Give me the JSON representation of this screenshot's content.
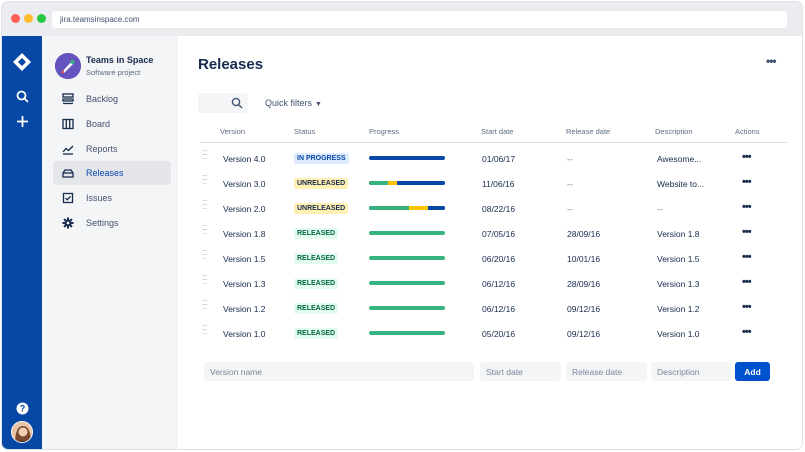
{
  "browser": {
    "url": "jira.teamsinspace.com"
  },
  "global_nav": {
    "icons": [
      "jira-logo-icon",
      "search-icon",
      "plus-icon",
      "help-icon",
      "user-avatar"
    ]
  },
  "project": {
    "name": "Teams in Space",
    "type": "Software project"
  },
  "sidebar": {
    "items": [
      {
        "label": "Backlog",
        "icon": "backlog-icon"
      },
      {
        "label": "Board",
        "icon": "board-icon"
      },
      {
        "label": "Reports",
        "icon": "reports-icon"
      },
      {
        "label": "Releases",
        "icon": "releases-icon",
        "active": true
      },
      {
        "label": "Issues",
        "icon": "issues-icon"
      },
      {
        "label": "Settings",
        "icon": "gear-icon"
      }
    ]
  },
  "page": {
    "title": "Releases",
    "more": "•••"
  },
  "filters": {
    "quick_filters": "Quick filters"
  },
  "table": {
    "headers": {
      "version": "Version",
      "status": "Status",
      "progress": "Progress",
      "start_date": "Start date",
      "release_date": "Release date",
      "description": "Description",
      "actions": "Actions"
    },
    "rows": [
      {
        "version": "Version 4.0",
        "status": "IN PROGRESS",
        "status_kind": "progress",
        "progress": {
          "done": 0,
          "in_progress": 0,
          "todo": 1.0
        },
        "start_date": "01/06/17",
        "release_date": "--",
        "description": "Awesome...",
        "actions": "•••"
      },
      {
        "version": "Version 3.0",
        "status": "UNRELEASED",
        "status_kind": "unreleased",
        "progress": {
          "done": 0.25,
          "in_progress": 0.12,
          "todo": 0.63
        },
        "start_date": "11/06/16",
        "release_date": "--",
        "description": "Website to...",
        "actions": "•••"
      },
      {
        "version": "Version 2.0",
        "status": "UNRELEASED",
        "status_kind": "unreleased",
        "progress": {
          "done": 0.53,
          "in_progress": 0.25,
          "todo": 0.22
        },
        "start_date": "08/22/16",
        "release_date": "--",
        "description": "--",
        "actions": "•••"
      },
      {
        "version": "Version 1.8",
        "status": "RELEASED",
        "status_kind": "released",
        "progress": {
          "done": 1.0,
          "in_progress": 0,
          "todo": 0
        },
        "start_date": "07/05/16",
        "release_date": "28/09/16",
        "description": "Version 1.8",
        "actions": "•••"
      },
      {
        "version": "Version 1.5",
        "status": "RELEASED",
        "status_kind": "released",
        "progress": {
          "done": 1.0,
          "in_progress": 0,
          "todo": 0
        },
        "start_date": "06/20/16",
        "release_date": "10/01/16",
        "description": "Version 1.5",
        "actions": "•••"
      },
      {
        "version": "Version 1.3",
        "status": "RELEASED",
        "status_kind": "released",
        "progress": {
          "done": 1.0,
          "in_progress": 0,
          "todo": 0
        },
        "start_date": "06/12/16",
        "release_date": "28/09/16",
        "description": "Version 1.3",
        "actions": "•••"
      },
      {
        "version": "Version 1.2",
        "status": "RELEASED",
        "status_kind": "released",
        "progress": {
          "done": 1.0,
          "in_progress": 0,
          "todo": 0
        },
        "start_date": "06/12/16",
        "release_date": "09/12/16",
        "description": "Version 1.2",
        "actions": "•••"
      },
      {
        "version": "Version 1.0",
        "status": "RELEASED",
        "status_kind": "released",
        "progress": {
          "done": 1.0,
          "in_progress": 0,
          "todo": 0
        },
        "start_date": "05/20/16",
        "release_date": "09/12/16",
        "description": "Version 1.0",
        "actions": "•••"
      }
    ]
  },
  "add_form": {
    "version_placeholder": "Version name",
    "start_placeholder": "Start date",
    "release_placeholder": "Release date",
    "description_placeholder": "Description",
    "add_label": "Add"
  },
  "colors": {
    "done": "#36b37e",
    "in_progress": "#ffc400",
    "todo": "#0747a6",
    "nav": "#0747a6",
    "primary": "#0052cc"
  }
}
